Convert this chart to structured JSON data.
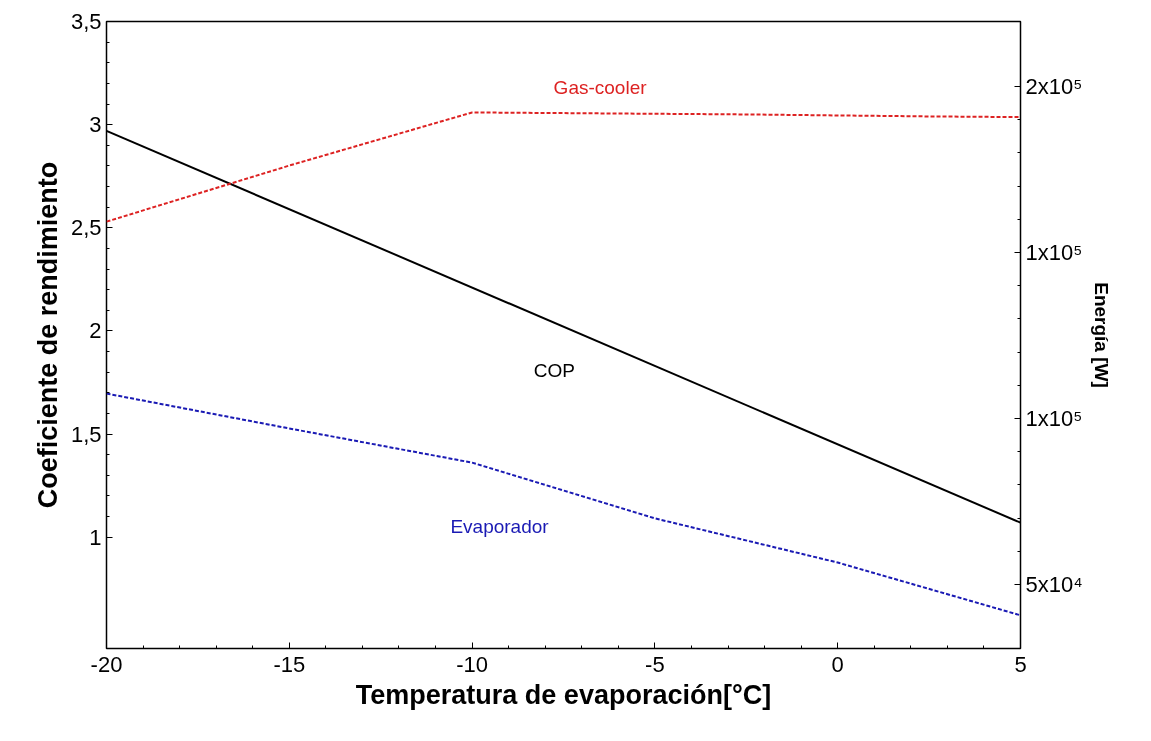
{
  "chart_data": {
    "type": "line",
    "xlabel": "Temperatura de evaporación[°C]",
    "ylabel": "Coeficiente de rendimiento",
    "y2label": "Energía [W]",
    "xlim": [
      -20,
      5
    ],
    "xticks": [
      -20,
      -15,
      -10,
      -5,
      0,
      5
    ],
    "ylim": [
      0.46,
      3.5
    ],
    "yticks": [
      {
        "value": 1,
        "label": "1"
      },
      {
        "value": 1.5,
        "label": "1,5"
      },
      {
        "value": 2,
        "label": "2"
      },
      {
        "value": 2.5,
        "label": "2,5"
      },
      {
        "value": 3,
        "label": "3"
      },
      {
        "value": 3.5,
        "label": "3,5"
      }
    ],
    "y2lim": [
      30700,
      219600
    ],
    "y2ticks": [
      {
        "value": 50000,
        "label": "5x10⁴"
      },
      {
        "value": 100000,
        "label": "1x10⁵"
      },
      {
        "value": 150000,
        "label": "1x10⁵"
      },
      {
        "value": 200000,
        "label": "2x10⁵"
      }
    ],
    "grid": false,
    "series": [
      {
        "name": "COP",
        "color": "#000000",
        "line_style": "solid",
        "x": [
          -20,
          5
        ],
        "values": [
          2.97,
          1.07
        ]
      },
      {
        "name": "Gas-cooler",
        "color": "#dd2222",
        "line_style": "dashed",
        "axis": "y2",
        "x": [
          -20,
          -15,
          -10,
          -7.5,
          -2.5,
          2.5,
          5
        ],
        "values": [
          159300,
          176200,
          192200,
          192000,
          191600,
          191000,
          190800
        ]
      },
      {
        "name": "Evaporador",
        "color": "#1a1ab4",
        "line_style": "dashed",
        "axis": "y2",
        "x": [
          -20,
          -15,
          -10,
          -5,
          0,
          5
        ],
        "values": [
          107500,
          97000,
          86700,
          69900,
          56600,
          40700
        ]
      }
    ]
  }
}
